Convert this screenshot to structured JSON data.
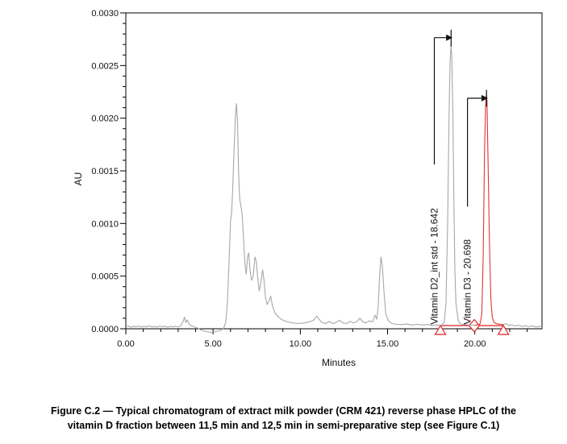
{
  "figure": {
    "caption_line1": "Figure C.2 — Typical chromatogram of extract milk powder (CRM 421) reverse phase HPLC of the",
    "caption_line2": "vitamin D fraction between 11,5 min and 12,5 min in semi-preparative step (see Figure C.1)"
  },
  "chart_data": {
    "type": "line",
    "title": "",
    "xlabel": "Minutes",
    "ylabel": "AU",
    "xlim": [
      0,
      23.85
    ],
    "ylim": [
      0,
      0.003
    ],
    "grid": false,
    "x_major_ticks": [
      {
        "v": 0,
        "label": "0.00"
      },
      {
        "v": 5,
        "label": "5.00"
      },
      {
        "v": 10,
        "label": "10.00"
      },
      {
        "v": 15,
        "label": "15.00"
      },
      {
        "v": 20,
        "label": "20.00"
      }
    ],
    "x_minor_step": 1,
    "y_major_ticks": [
      {
        "v": 0.0,
        "label": "0.0000"
      },
      {
        "v": 0.0005,
        "label": "0.0005"
      },
      {
        "v": 0.001,
        "label": "0.0010"
      },
      {
        "v": 0.0015,
        "label": "0.0015"
      },
      {
        "v": 0.002,
        "label": "0.0020"
      },
      {
        "v": 0.0025,
        "label": "0.0025"
      },
      {
        "v": 0.003,
        "label": "0.0030"
      }
    ],
    "y_minor_step": 0.0001,
    "colors": {
      "trace": "#a6a6ae",
      "highlight": "#e23333",
      "axis": "#000000",
      "annotation": "#111111"
    },
    "series": [
      {
        "name": "extract-trace-main",
        "color": "#a6a6ae",
        "points": [
          [
            0.0,
            2e-05
          ],
          [
            0.15,
            2.6e-05
          ],
          [
            0.3,
            1.4e-05
          ],
          [
            0.45,
            2.4e-05
          ],
          [
            0.6,
            1.8e-05
          ],
          [
            0.75,
            2.6e-05
          ],
          [
            0.9,
            1.6e-05
          ],
          [
            1.05,
            2.4e-05
          ],
          [
            1.2,
            1.8e-05
          ],
          [
            1.35,
            2.8e-05
          ],
          [
            1.5,
            1.6e-05
          ],
          [
            1.65,
            2.2e-05
          ],
          [
            1.8,
            1.6e-05
          ],
          [
            1.95,
            2.6e-05
          ],
          [
            2.1,
            1.8e-05
          ],
          [
            2.25,
            2.4e-05
          ],
          [
            2.4,
            1.4e-05
          ],
          [
            2.55,
            2.2e-05
          ],
          [
            2.7,
            1.8e-05
          ],
          [
            2.85,
            2.4e-05
          ],
          [
            3.0,
            1.8e-05
          ],
          [
            3.15,
            2.8e-05
          ],
          [
            3.28,
            7e-05
          ],
          [
            3.36,
            0.00011
          ],
          [
            3.44,
            6e-05
          ],
          [
            3.52,
            8.5e-05
          ],
          [
            3.62,
            4.5e-05
          ],
          [
            3.75,
            2.8e-05
          ],
          [
            3.9,
            2e-05
          ],
          [
            4.1,
            8e-06
          ],
          [
            4.3,
            -1e-05
          ],
          [
            4.5,
            -2.2e-05
          ],
          [
            4.7,
            -3e-05
          ],
          [
            4.9,
            -3.4e-05
          ],
          [
            5.1,
            -3e-05
          ],
          [
            5.3,
            -2.2e-05
          ],
          [
            5.5,
            -1e-05
          ],
          [
            5.62,
            1e-05
          ],
          [
            5.72,
            6e-05
          ],
          [
            5.82,
            0.00024
          ],
          [
            5.92,
            0.00065
          ],
          [
            6.0,
            0.00102
          ],
          [
            6.06,
            0.0011
          ],
          [
            6.12,
            0.0013
          ],
          [
            6.2,
            0.00168
          ],
          [
            6.28,
            0.00202
          ],
          [
            6.34,
            0.00214
          ],
          [
            6.4,
            0.00196
          ],
          [
            6.46,
            0.00148
          ],
          [
            6.52,
            0.00124
          ],
          [
            6.6,
            0.00116
          ],
          [
            6.66,
            0.0011
          ],
          [
            6.74,
            0.00088
          ],
          [
            6.82,
            0.00062
          ],
          [
            6.9,
            0.00052
          ],
          [
            6.98,
            0.00069
          ],
          [
            7.04,
            0.00072
          ],
          [
            7.12,
            0.00056
          ],
          [
            7.2,
            0.00046
          ],
          [
            7.3,
            0.0005
          ],
          [
            7.4,
            0.00068
          ],
          [
            7.48,
            0.00064
          ],
          [
            7.56,
            0.00048
          ],
          [
            7.64,
            0.00036
          ],
          [
            7.74,
            0.00044
          ],
          [
            7.84,
            0.00056
          ],
          [
            7.92,
            0.00046
          ],
          [
            8.0,
            0.0003
          ],
          [
            8.1,
            0.00023
          ],
          [
            8.2,
            0.00026
          ],
          [
            8.3,
            0.00031
          ],
          [
            8.4,
            0.00022
          ],
          [
            8.55,
            0.00015
          ],
          [
            8.7,
            0.00012
          ],
          [
            8.9,
            9e-05
          ],
          [
            9.1,
            7.5e-05
          ],
          [
            9.3,
            6.5e-05
          ],
          [
            9.6,
            5.5e-05
          ],
          [
            9.9,
            5e-05
          ],
          [
            10.2,
            5.5e-05
          ],
          [
            10.5,
            6.5e-05
          ],
          [
            10.75,
            8e-05
          ],
          [
            10.95,
            0.00012
          ],
          [
            11.1,
            8.5e-05
          ],
          [
            11.25,
            6e-05
          ],
          [
            11.45,
            5e-05
          ],
          [
            11.65,
            7e-05
          ],
          [
            11.85,
            5e-05
          ],
          [
            12.05,
            6e-05
          ],
          [
            12.25,
            8e-05
          ],
          [
            12.45,
            5.5e-05
          ],
          [
            12.65,
            5e-05
          ],
          [
            12.85,
            7e-05
          ],
          [
            13.05,
            5.5e-05
          ],
          [
            13.25,
            7e-05
          ],
          [
            13.42,
            0.0001
          ],
          [
            13.58,
            6.5e-05
          ],
          [
            13.75,
            5.5e-05
          ],
          [
            13.95,
            7.5e-05
          ],
          [
            14.15,
            6.5e-05
          ],
          [
            14.28,
            0.00013
          ],
          [
            14.38,
            9e-05
          ],
          [
            14.46,
            0.0002
          ],
          [
            14.55,
            0.00052
          ],
          [
            14.62,
            0.00068
          ],
          [
            14.7,
            0.0006
          ],
          [
            14.8,
            0.00034
          ],
          [
            14.9,
            0.00014
          ],
          [
            15.05,
            7.5e-05
          ],
          [
            15.25,
            5e-05
          ],
          [
            15.5,
            4.2e-05
          ],
          [
            15.8,
            4e-05
          ],
          [
            16.1,
            4.5e-05
          ],
          [
            16.4,
            3.5e-05
          ],
          [
            16.7,
            4.2e-05
          ],
          [
            17.0,
            3.5e-05
          ],
          [
            17.3,
            4e-05
          ],
          [
            17.6,
            3.2e-05
          ],
          [
            17.9,
            3.6e-05
          ],
          [
            18.1,
            3.4e-05
          ],
          [
            18.25,
            6e-05
          ],
          [
            18.35,
            0.00025
          ],
          [
            18.44,
            0.001
          ],
          [
            18.52,
            0.002
          ],
          [
            18.58,
            0.00252
          ],
          [
            18.63,
            0.00268
          ],
          [
            18.68,
            0.0026
          ],
          [
            18.74,
            0.0021
          ],
          [
            18.8,
            0.00125
          ],
          [
            18.86,
            0.00055
          ],
          [
            18.92,
            0.00024
          ],
          [
            18.98,
            0.00017
          ],
          [
            19.04,
            9e-05
          ],
          [
            19.12,
            5.5e-05
          ],
          [
            19.25,
            4.2e-05
          ],
          [
            19.45,
            4e-05
          ],
          [
            19.65,
            3.6e-05
          ],
          [
            19.85,
            3.4e-05
          ],
          [
            20.0,
            3.4e-05
          ]
        ]
      },
      {
        "name": "vitamin-d3-red-segment",
        "color": "#e23333",
        "points": [
          [
            20.0,
            3.4e-05
          ],
          [
            20.15,
            3.6e-05
          ],
          [
            20.3,
            4.5e-05
          ],
          [
            20.4,
            0.00014
          ],
          [
            20.48,
            0.0007
          ],
          [
            20.56,
            0.0017
          ],
          [
            20.62,
            0.00212
          ],
          [
            20.66,
            0.00222
          ],
          [
            20.7,
            0.00216
          ],
          [
            20.76,
            0.0016
          ],
          [
            20.84,
            0.0008
          ],
          [
            20.92,
            0.00028
          ],
          [
            21.0,
            0.00011
          ],
          [
            21.1,
            6e-05
          ],
          [
            21.25,
            4.8e-05
          ],
          [
            21.45,
            4.2e-05
          ],
          [
            21.65,
            4e-05
          ]
        ]
      },
      {
        "name": "extract-trace-tail",
        "color": "#a6a6ae",
        "points": [
          [
            21.65,
            4e-05
          ],
          [
            21.8,
            5e-05
          ],
          [
            21.95,
            3e-05
          ],
          [
            22.1,
            4e-05
          ],
          [
            22.3,
            2.6e-05
          ],
          [
            22.5,
            3.4e-05
          ],
          [
            22.7,
            2.2e-05
          ],
          [
            22.9,
            3e-05
          ],
          [
            23.1,
            2e-05
          ],
          [
            23.3,
            2.8e-05
          ],
          [
            23.5,
            1.6e-05
          ],
          [
            23.7,
            2.2e-05
          ],
          [
            23.85,
            1.8e-05
          ]
        ]
      }
    ],
    "integration": {
      "color": "#e23333",
      "baseline": {
        "x1": 18.0,
        "x2": 21.65,
        "au": 3e-05
      },
      "markers": [
        {
          "shape": "triangle",
          "x": 18.03
        },
        {
          "shape": "diamond",
          "x": 19.97
        },
        {
          "shape": "triangle",
          "x": 21.64
        }
      ]
    },
    "peaks": [
      {
        "name": "vitamin-d2-int-std",
        "label": "Vitamin D2_int std - 18.642",
        "retention_time_min": 18.642,
        "apex_au": 0.00268,
        "apex_tick_x": 18.64,
        "apex_tick_au": [
          0.00268,
          0.00284
        ],
        "arrow_au": 0.002765,
        "elbow_x": 17.68,
        "arrow_tip_x": 18.54,
        "elbow_bottom_au": 0.00156,
        "label_x": 17.68,
        "label_base_au": 4e-05
      },
      {
        "name": "vitamin-d3",
        "label": "Vitamin D3 - 20.698",
        "retention_time_min": 20.698,
        "apex_au": 0.00222,
        "apex_tick_x": 20.67,
        "apex_tick_au": [
          0.00211,
          0.00227
        ],
        "arrow_au": 0.00219,
        "elbow_x": 19.58,
        "arrow_tip_x": 20.57,
        "elbow_bottom_au": 0.00116,
        "label_x": 19.58,
        "label_base_au": 4e-05
      }
    ]
  }
}
